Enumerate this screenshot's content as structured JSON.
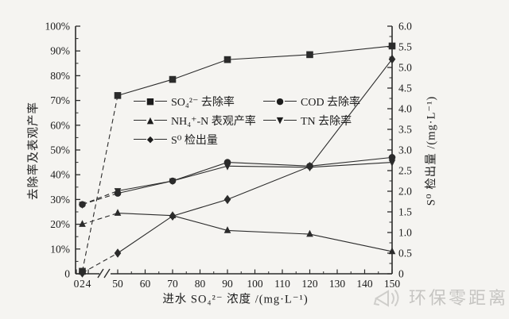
{
  "colors": {
    "line": "#2b2b2b",
    "text": "#1c1c1c",
    "watermark": "#c9c8c5",
    "background": "#f5f4f1"
  },
  "watermark": {
    "text": "环保零距离",
    "icon": "megaphone-icon"
  },
  "chart_data": {
    "type": "line",
    "title": "",
    "x_axis": {
      "label": "进水 SO₄²⁻ 浓度 /(mg·L⁻¹)",
      "broken_axis": true,
      "segment_a_tick_values": [
        0,
        2,
        4
      ],
      "segment_a_tick_labels": [
        "0",
        "2",
        "4"
      ],
      "segment_a_minor_values": [
        1,
        3
      ],
      "segment_b_tick_values": [
        50,
        60,
        70,
        80,
        90,
        100,
        110,
        120,
        130,
        140,
        150
      ],
      "segment_b_tick_labels": [
        "50",
        "60",
        "70",
        "80",
        "90",
        "100",
        "110",
        "120",
        "130",
        "140",
        "150"
      ],
      "segment_b_minor_values": [
        55,
        65,
        75,
        85,
        95,
        105,
        115,
        125,
        135,
        145
      ]
    },
    "y_left": {
      "label": "去除率及表观产率",
      "min": 0,
      "max": 100,
      "tick_labels": [
        "100%",
        "90%",
        "80%",
        "70%",
        "60%",
        "50%",
        "40%",
        "30%",
        "20%",
        "10%",
        "0"
      ],
      "tick_values": [
        100,
        90,
        80,
        70,
        60,
        50,
        40,
        30,
        20,
        10,
        0
      ],
      "minor_step": 5
    },
    "y_right": {
      "label": "S⁰ 检出量 /(mg·L⁻¹)",
      "min": 0,
      "max": 6,
      "tick_labels": [
        "6.0",
        "5.5",
        "5.0",
        "4.5",
        "4.0",
        "3.5",
        "3.0",
        "2.5",
        "2.0",
        "1.5",
        "1.0",
        "0.5",
        "0"
      ],
      "tick_values": [
        6,
        5.5,
        5,
        4.5,
        4,
        3.5,
        3,
        2.5,
        2,
        1.5,
        1,
        0.5,
        0
      ],
      "minor_step": 0.25
    },
    "x": [
      2,
      50,
      70,
      90,
      120,
      150
    ],
    "series": [
      {
        "name": "SO₄²⁻ 去除率",
        "marker": "square",
        "axis": "left",
        "values": [
          1,
          72,
          78.5,
          86.5,
          88.5,
          92
        ]
      },
      {
        "name": "COD 去除率",
        "marker": "circle",
        "axis": "left",
        "values": [
          28,
          32.5,
          37.5,
          45,
          43.5,
          47
        ]
      },
      {
        "name": "NH₄⁺-N 表观产率",
        "marker": "triangle-up",
        "axis": "left",
        "values": [
          20,
          24.5,
          23.5,
          17.5,
          16,
          9
        ]
      },
      {
        "name": "TN 去除率",
        "marker": "triangle-down",
        "axis": "left",
        "values": [
          28,
          33.5,
          37.5,
          43.5,
          43,
          45
        ]
      },
      {
        "name": "S⁰ 检出量",
        "marker": "diamond",
        "axis": "right",
        "values": [
          0.02,
          0.5,
          1.4,
          1.8,
          2.6,
          5.2
        ]
      }
    ],
    "marker_glyphs": {
      "square": "■",
      "circle": "●",
      "triangle-up": "▲",
      "triangle-down": "▼",
      "diamond": "◆"
    },
    "legend": {
      "position": "inside-top-center",
      "columns": 2,
      "grid": false
    }
  }
}
